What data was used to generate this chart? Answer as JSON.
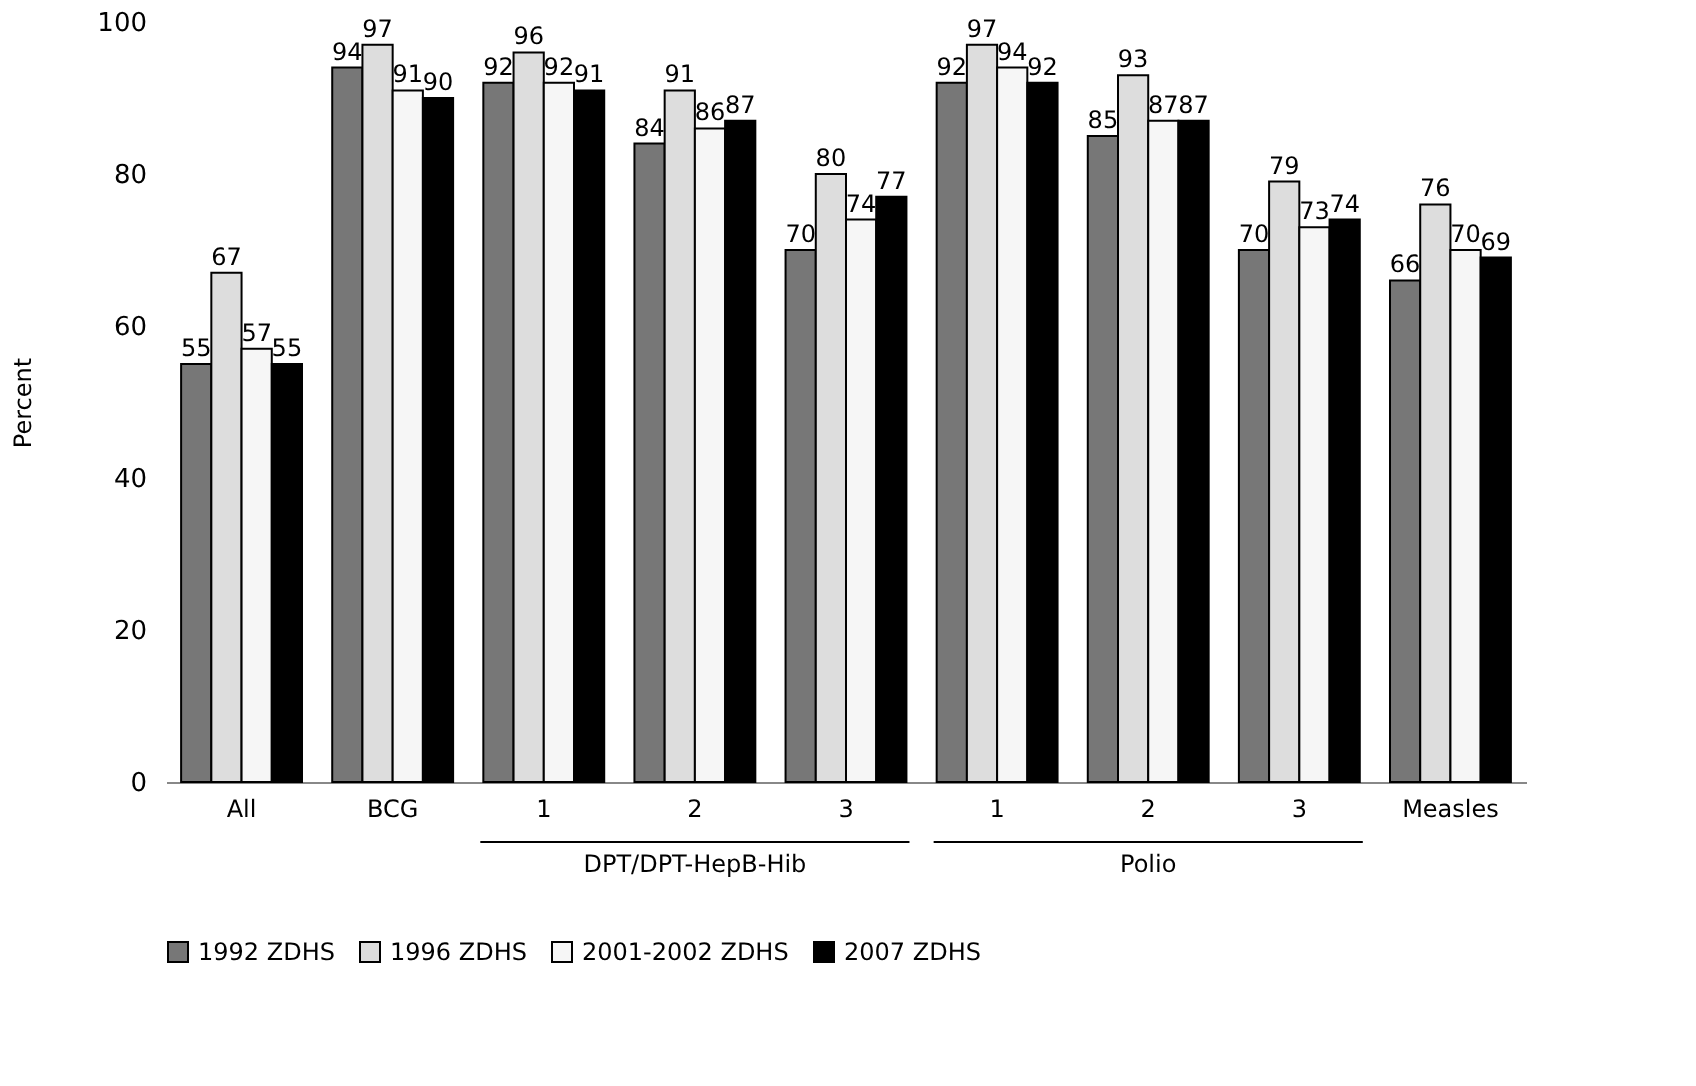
{
  "chart_data": {
    "type": "bar",
    "ylabel": "Percent",
    "categories": [
      "All",
      "BCG",
      "1",
      "2",
      "3",
      "1",
      "2",
      "3",
      "Measles"
    ],
    "series": [
      {
        "name": "1992 ZDHS",
        "color": "#777777",
        "values": [
          55,
          94,
          92,
          84,
          70,
          92,
          85,
          70,
          66
        ]
      },
      {
        "name": "1996 ZDHS",
        "color": "#dddddd",
        "values": [
          67,
          97,
          96,
          91,
          80,
          97,
          93,
          79,
          76
        ]
      },
      {
        "name": "2001-2002 ZDHS",
        "color": "#f6f6f6",
        "values": [
          57,
          91,
          92,
          86,
          74,
          94,
          87,
          73,
          70
        ]
      },
      {
        "name": "2007 ZDHS",
        "color": "#000000",
        "values": [
          55,
          90,
          91,
          87,
          77,
          92,
          87,
          74,
          69
        ]
      }
    ],
    "ylim": [
      0,
      100
    ],
    "yticks": [
      0,
      20,
      40,
      60,
      80,
      100
    ],
    "grid": false,
    "legend": "bottom",
    "data_labels": true,
    "annotations": [
      "DPT/DPT-HepB-Hib",
      "Polio"
    ]
  }
}
